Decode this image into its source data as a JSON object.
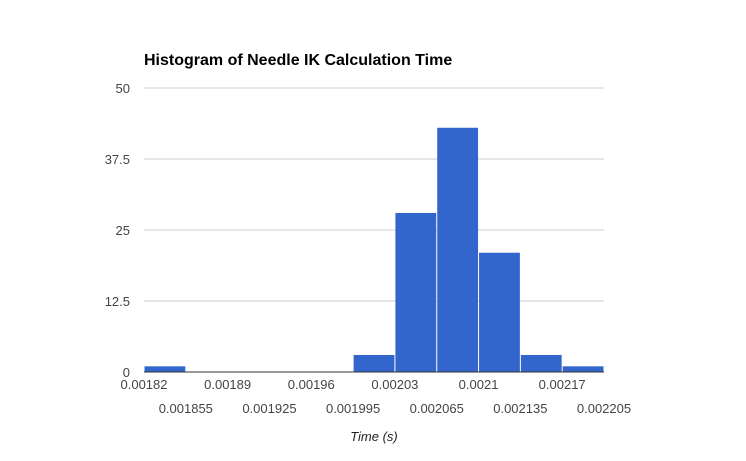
{
  "chart_data": {
    "type": "bar",
    "title": "Histogram of Needle IK Calculation Time",
    "xlabel": "Time (s)",
    "ylabel": "",
    "bin_edges": [
      0.00182,
      0.001855,
      0.00189,
      0.001925,
      0.00196,
      0.001995,
      0.00203,
      0.002065,
      0.0021,
      0.002135,
      0.00217,
      0.002205
    ],
    "values": [
      1,
      0,
      0,
      0,
      0,
      3,
      28,
      43,
      21,
      3,
      1
    ],
    "xlim": [
      0.00182,
      0.002205
    ],
    "ylim": [
      0,
      50
    ],
    "y_ticks": [
      "0",
      "12.5",
      "25",
      "37.5",
      "50"
    ],
    "x_ticks_upper": [
      "0.00182",
      "0.00189",
      "0.00196",
      "0.00203",
      "0.0021",
      "0.00217"
    ],
    "x_ticks_lower": [
      "0.001855",
      "0.001925",
      "0.001995",
      "0.002065",
      "0.002135",
      "0.002205"
    ],
    "grid": true,
    "legend": "none",
    "bar_color": "#3366cc",
    "grid_color": "#cccccc"
  }
}
